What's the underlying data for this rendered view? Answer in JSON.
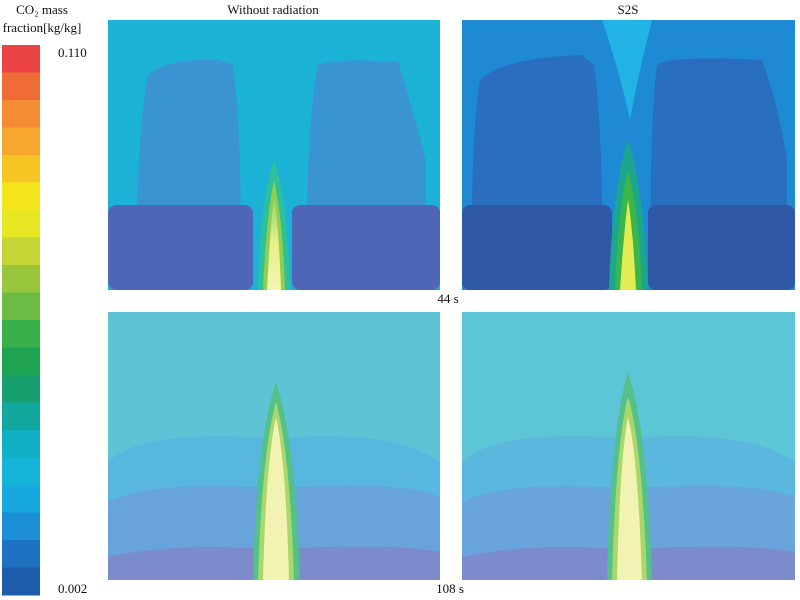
{
  "colorbar": {
    "title_lines": [
      "CO₂ mass",
      "fraction[kg/kg]"
    ],
    "max_label": "0.110",
    "min_label": "0.002"
  },
  "columns": [
    "Without radiation",
    "S2S"
  ],
  "rows": [
    "44 s",
    "108 s"
  ]
}
